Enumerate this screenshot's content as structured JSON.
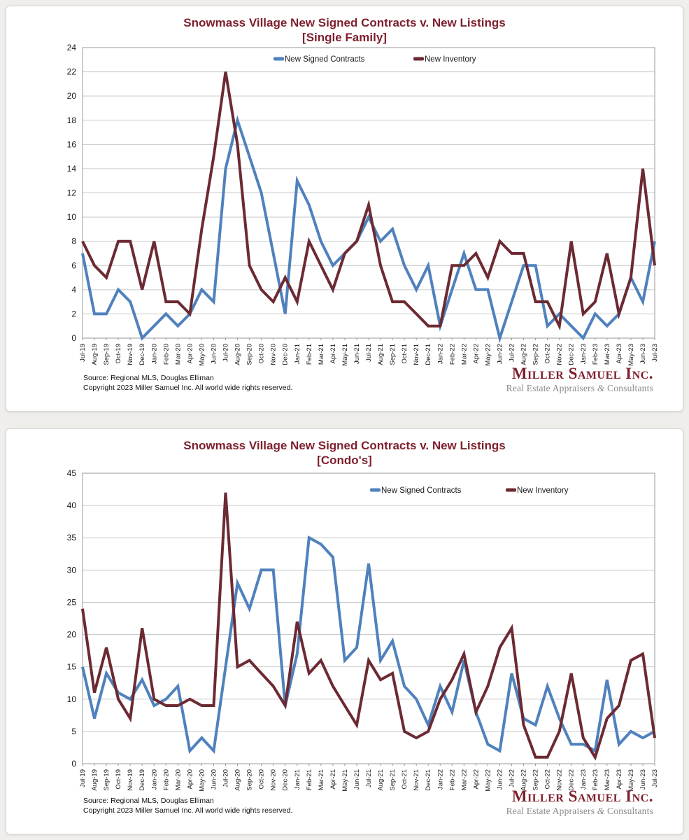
{
  "page": {
    "background": "#efeeeb"
  },
  "brand": {
    "name": "Miller Samuel Inc.",
    "tagline_left": "Real Estate Appraisers ",
    "tagline_amp": "&",
    "tagline_right": " Consultants",
    "color": "#7E1F2D"
  },
  "footer": {
    "source": "Source: Regional MLS, Douglas Elliman",
    "copyright": "Copyright 2023 Miller Samuel Inc.  All world wide rights reserved."
  },
  "colors": {
    "contracts_line": "#4F81BD",
    "inventory_line": "#6C2A33",
    "title_text": "#7E1F2D",
    "grid": "#c9c9c9",
    "plot_border": "#9a9a9a",
    "axis_text": "#1a1a1a"
  },
  "months": [
    "Jul-19",
    "Aug-19",
    "Sep-19",
    "Oct-19",
    "Nov-19",
    "Dec-19",
    "Jan-20",
    "Feb-20",
    "Mar-20",
    "Apr-20",
    "May-20",
    "Jun-20",
    "Jul-20",
    "Aug-20",
    "Sep-20",
    "Oct-20",
    "Nov-20",
    "Dec-20",
    "Jan-21",
    "Feb-21",
    "Mar-21",
    "Apr-21",
    "May-21",
    "Jun-21",
    "Jul-21",
    "Aug-21",
    "Sep-21",
    "Oct-21",
    "Nov-21",
    "Dec-21",
    "Jan-22",
    "Feb-22",
    "Mar-22",
    "Apr-22",
    "May-22",
    "Jun-22",
    "Jul-22",
    "Aug-22",
    "Sep-22",
    "Oct-22",
    "Nov-22",
    "Dec-22",
    "Jan-23",
    "Feb-23",
    "Mar-23",
    "Apr-23",
    "May-23",
    "Jun-23",
    "Jul-23"
  ],
  "chart_data": [
    {
      "type": "line",
      "title": "Snowmass Village New Signed Contracts v. New Listings",
      "subtitle": "[Single Family]",
      "xlabel": "",
      "ylabel": "",
      "ylim": [
        0,
        24
      ],
      "ytick_step": 2,
      "grid": true,
      "legend_position": "inside-top",
      "categories": "months",
      "series": [
        {
          "name": "New Signed Contracts",
          "color": "#4F81BD",
          "values": [
            7,
            2,
            2,
            4,
            3,
            0,
            1,
            2,
            1,
            2,
            4,
            3,
            14,
            18,
            15,
            12,
            7,
            2,
            13,
            11,
            8,
            6,
            7,
            8,
            10,
            8,
            9,
            6,
            4,
            6,
            1,
            4,
            7,
            4,
            4,
            0,
            3,
            6,
            6,
            1,
            2,
            1,
            0,
            2,
            1,
            2,
            5,
            3,
            8
          ]
        },
        {
          "name": "New Inventory",
          "color": "#6C2A33",
          "values": [
            8,
            6,
            5,
            8,
            8,
            4,
            8,
            3,
            3,
            2,
            9,
            15,
            22,
            16,
            6,
            4,
            3,
            5,
            3,
            8,
            6,
            4,
            7,
            8,
            11,
            6,
            3,
            3,
            2,
            1,
            1,
            6,
            6,
            7,
            5,
            8,
            7,
            7,
            3,
            3,
            1,
            8,
            2,
            3,
            7,
            2,
            5,
            14,
            6
          ]
        }
      ]
    },
    {
      "type": "line",
      "title": "Snowmass Village New Signed Contracts v. New Listings",
      "subtitle": "[Condo's]",
      "xlabel": "",
      "ylabel": "",
      "ylim": [
        0,
        45
      ],
      "ytick_step": 5,
      "grid": true,
      "legend_position": "inside-top",
      "categories": "months",
      "series": [
        {
          "name": "New Signed Contracts",
          "color": "#4F81BD",
          "values": [
            15,
            7,
            14,
            11,
            10,
            13,
            9,
            10,
            12,
            2,
            4,
            2,
            15,
            28,
            24,
            30,
            30,
            9,
            17,
            35,
            34,
            32,
            16,
            18,
            31,
            16,
            19,
            12,
            10,
            6,
            12,
            8,
            16,
            8,
            3,
            2,
            14,
            7,
            6,
            12,
            7,
            3,
            3,
            2,
            13,
            3,
            5,
            4,
            5
          ]
        },
        {
          "name": "New Inventory",
          "color": "#6C2A33",
          "values": [
            24,
            11,
            18,
            10,
            7,
            21,
            10,
            9,
            9,
            10,
            9,
            9,
            42,
            15,
            16,
            14,
            12,
            9,
            22,
            14,
            16,
            12,
            9,
            6,
            16,
            13,
            14,
            5,
            4,
            5,
            10,
            13,
            17,
            8,
            12,
            18,
            21,
            6,
            1,
            1,
            5,
            14,
            4,
            1,
            7,
            9,
            16,
            17,
            4
          ]
        }
      ]
    }
  ]
}
